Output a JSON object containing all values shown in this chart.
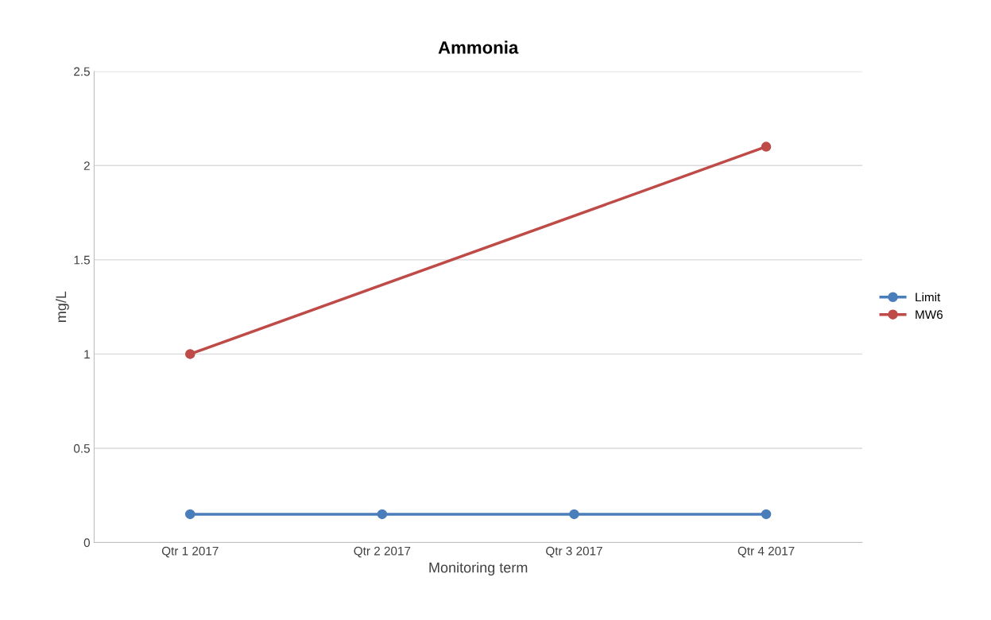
{
  "chart_data": {
    "type": "line",
    "title": "Ammonia",
    "xlabel": "Monitoring term",
    "ylabel": "mg/L",
    "categories": [
      "Qtr 1 2017",
      "Qtr 2 2017",
      "Qtr 3 2017",
      "Qtr 4 2017"
    ],
    "series": [
      {
        "name": "Limit",
        "color": "#4a7ebb",
        "values": [
          0.15,
          0.15,
          0.15,
          0.15
        ]
      },
      {
        "name": "MW6",
        "color": "#be4b48",
        "values": [
          1,
          null,
          null,
          2.1
        ]
      }
    ],
    "ylim": [
      0,
      2.5
    ],
    "yticks": [
      0,
      0.5,
      1,
      1.5,
      2,
      2.5
    ],
    "grid": "y",
    "legend": "right",
    "marker": "circle",
    "line_style": "solid"
  }
}
